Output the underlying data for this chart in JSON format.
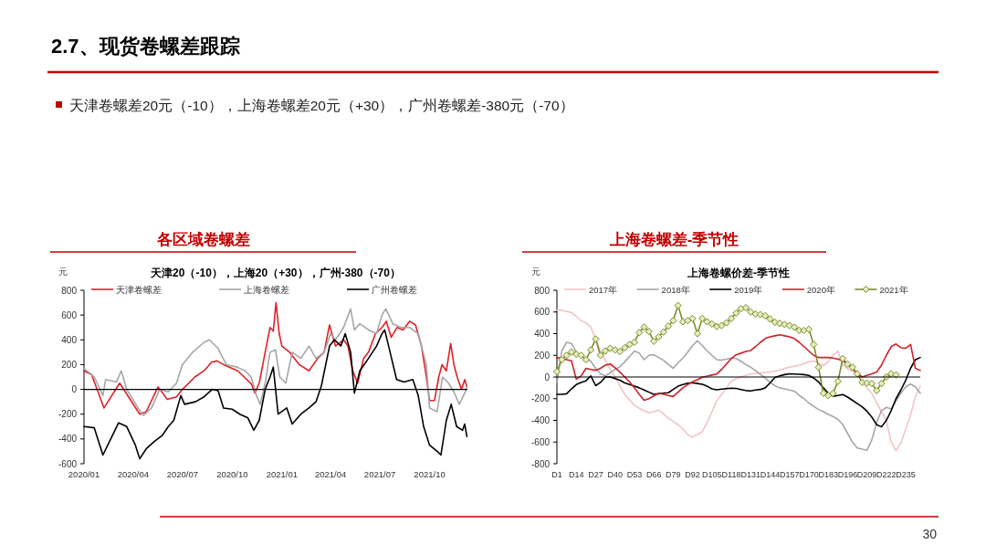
{
  "chart_data": [
    {
      "type": "line",
      "title": "各区域卷螺差",
      "subtitle": "天津20（-10），上海20（+30），广州-380（-70）",
      "ylabel": "元",
      "annotations": [
        "2.7、现货卷螺差跟踪",
        "天津卷螺差20元（-10），上海卷螺差20元（+30），广州卷螺差-380元（-70）",
        "30"
      ],
      "xlim": [
        "2020-01-01",
        "2021-12-10"
      ],
      "xticks": [
        {
          "value": "2020-01-01",
          "label": "2020/01"
        },
        {
          "value": "2020-04-01",
          "label": "2020/04"
        },
        {
          "value": "2020-07-01",
          "label": "2020/07"
        },
        {
          "value": "2020-10-01",
          "label": "2020/10"
        },
        {
          "value": "2021-01-01",
          "label": "2021/01"
        },
        {
          "value": "2021-04-01",
          "label": "2021/04"
        },
        {
          "value": "2021-07-01",
          "label": "2021/07"
        },
        {
          "value": "2021-10-01",
          "label": "2021/10"
        }
      ],
      "ylim": [
        -600,
        800
      ],
      "yticks": [
        -600,
        -400,
        -200,
        0,
        200,
        400,
        600,
        800
      ],
      "ref_lines": [
        {
          "axis": "y",
          "value": 0,
          "color": "#000000"
        }
      ],
      "legend": "top",
      "grid": false,
      "series": [
        {
          "name": "天津卷螺差",
          "color": "#e0202a",
          "x": [
            "2020-01-01",
            "2020-01-15",
            "2020-02-07",
            "2020-03-07",
            "2020-04-13",
            "2020-04-25",
            "2020-05-17",
            "2020-06-03",
            "2020-06-20",
            "2020-07-01",
            "2020-07-24",
            "2020-08-10",
            "2020-08-24",
            "2020-09-03",
            "2020-09-15",
            "2020-10-11",
            "2020-10-28",
            "2020-11-06",
            "2020-11-12",
            "2020-11-20",
            "2020-12-01",
            "2020-12-10",
            "2020-12-16",
            "2020-12-21",
            "2020-12-27",
            "2021-01-01",
            "2021-01-15",
            "2021-02-02",
            "2021-02-20",
            "2021-03-08",
            "2021-03-20",
            "2021-03-30",
            "2021-04-10",
            "2021-04-25",
            "2021-05-03",
            "2021-05-12",
            "2021-05-21",
            "2021-06-01",
            "2021-06-10",
            "2021-06-23",
            "2021-07-05",
            "2021-07-13",
            "2021-07-22",
            "2021-08-02",
            "2021-08-13",
            "2021-08-25",
            "2021-09-05",
            "2021-09-16",
            "2021-09-25",
            "2021-10-01",
            "2021-10-10",
            "2021-10-18",
            "2021-10-24",
            "2021-11-01",
            "2021-11-09",
            "2021-11-15",
            "2021-11-21",
            "2021-11-29",
            "2021-12-05",
            "2021-12-09"
          ],
          "values": [
            150,
            120,
            -150,
            50,
            -200,
            -180,
            20,
            -80,
            -60,
            0,
            100,
            150,
            220,
            230,
            200,
            150,
            80,
            40,
            -30,
            50,
            300,
            500,
            470,
            700,
            450,
            350,
            300,
            200,
            150,
            250,
            300,
            520,
            350,
            400,
            350,
            150,
            50,
            250,
            300,
            450,
            500,
            550,
            420,
            500,
            480,
            550,
            520,
            350,
            100,
            -90,
            -90,
            100,
            200,
            150,
            370,
            200,
            100,
            0,
            80,
            20
          ]
        },
        {
          "name": "上海卷螺差",
          "color": "#a6a6a6",
          "x": [
            "2020-01-01",
            "2020-01-20",
            "2020-02-05",
            "2020-02-10",
            "2020-03-01",
            "2020-03-10",
            "2020-03-20",
            "2020-04-10",
            "2020-04-20",
            "2020-05-05",
            "2020-05-20",
            "2020-06-05",
            "2020-06-20",
            "2020-07-01",
            "2020-07-20",
            "2020-08-10",
            "2020-08-20",
            "2020-09-05",
            "2020-09-20",
            "2020-10-10",
            "2020-10-25",
            "2020-11-05",
            "2020-11-15",
            "2020-11-22",
            "2020-12-01",
            "2020-12-10",
            "2020-12-20",
            "2020-12-28",
            "2021-01-08",
            "2021-01-20",
            "2021-02-05",
            "2021-02-20",
            "2021-03-05",
            "2021-03-20",
            "2021-04-01",
            "2021-04-10",
            "2021-04-25",
            "2021-05-08",
            "2021-05-15",
            "2021-05-25",
            "2021-06-10",
            "2021-06-25",
            "2021-07-05",
            "2021-07-12",
            "2021-07-25",
            "2021-08-10",
            "2021-08-25",
            "2021-09-10",
            "2021-09-25",
            "2021-10-01",
            "2021-10-15",
            "2021-10-25",
            "2021-11-05",
            "2021-11-15",
            "2021-11-25",
            "2021-12-05",
            "2021-12-09"
          ],
          "values": [
            170,
            100,
            -50,
            80,
            60,
            150,
            0,
            -150,
            -210,
            -150,
            0,
            -20,
            50,
            200,
            300,
            380,
            400,
            330,
            200,
            180,
            150,
            100,
            -50,
            -120,
            50,
            300,
            320,
            100,
            50,
            300,
            250,
            350,
            250,
            300,
            450,
            400,
            500,
            650,
            480,
            530,
            480,
            450,
            600,
            650,
            530,
            500,
            500,
            450,
            200,
            -150,
            -180,
            100,
            50,
            -20,
            -120,
            -30,
            20
          ]
        },
        {
          "name": "广州卷螺差",
          "color": "#000000",
          "x": [
            "2020-01-01",
            "2020-01-20",
            "2020-02-05",
            "2020-02-25",
            "2020-03-05",
            "2020-03-20",
            "2020-04-05",
            "2020-04-13",
            "2020-04-25",
            "2020-05-10",
            "2020-05-25",
            "2020-06-05",
            "2020-06-15",
            "2020-06-28",
            "2020-07-05",
            "2020-07-25",
            "2020-08-10",
            "2020-08-25",
            "2020-09-05",
            "2020-09-15",
            "2020-10-01",
            "2020-10-15",
            "2020-10-30",
            "2020-11-10",
            "2020-11-20",
            "2020-12-01",
            "2020-12-10",
            "2020-12-16",
            "2020-12-25",
            "2021-01-10",
            "2021-01-20",
            "2021-02-05",
            "2021-02-20",
            "2021-03-05",
            "2021-03-15",
            "2021-03-30",
            "2021-04-08",
            "2021-04-20",
            "2021-04-28",
            "2021-05-08",
            "2021-05-15",
            "2021-05-25",
            "2021-06-10",
            "2021-06-25",
            "2021-07-05",
            "2021-07-10",
            "2021-07-20",
            "2021-08-01",
            "2021-08-15",
            "2021-08-31",
            "2021-09-10",
            "2021-09-20",
            "2021-10-01",
            "2021-10-15",
            "2021-10-22",
            "2021-11-01",
            "2021-11-10",
            "2021-11-20",
            "2021-12-01",
            "2021-12-05",
            "2021-12-09"
          ],
          "values": [
            -300,
            -310,
            -530,
            -350,
            -270,
            -300,
            -450,
            -560,
            -480,
            -420,
            -370,
            -300,
            -250,
            -50,
            -120,
            -100,
            -60,
            0,
            -10,
            -150,
            -160,
            -200,
            -230,
            -330,
            -250,
            0,
            100,
            180,
            -200,
            -150,
            -280,
            -200,
            -150,
            -100,
            30,
            350,
            400,
            350,
            450,
            300,
            -30,
            150,
            250,
            350,
            450,
            480,
            300,
            80,
            60,
            80,
            -50,
            -300,
            -450,
            -500,
            -530,
            -250,
            -120,
            -300,
            -330,
            -280,
            -380
          ]
        }
      ]
    },
    {
      "type": "line",
      "title": "上海卷螺差-季节性",
      "subtitle": "上海卷螺价差-季节性",
      "ylabel": "元",
      "categories": [
        "D1",
        null,
        null,
        null,
        "D14",
        null,
        null,
        null,
        "D27",
        null,
        null,
        null,
        "D40",
        null,
        null,
        null,
        "D53",
        null,
        null,
        null,
        "D66",
        null,
        null,
        null,
        "D79",
        null,
        null,
        null,
        "D92",
        null,
        null,
        null,
        "D105",
        null,
        null,
        null,
        "D118",
        null,
        null,
        null,
        "D131",
        null,
        null,
        null,
        "D144",
        null,
        null,
        null,
        "D157",
        null,
        null,
        null,
        "D170",
        null,
        null,
        null,
        "D183",
        null,
        null,
        null,
        "D196",
        null,
        null,
        null,
        "D209",
        null,
        null,
        null,
        "D222",
        null,
        null,
        null,
        "D235",
        null,
        null,
        null
      ],
      "ylim": [
        -800,
        800
      ],
      "yticks": [
        -800,
        -600,
        -400,
        -200,
        0,
        200,
        400,
        600,
        800
      ],
      "ref_lines": [
        {
          "axis": "y",
          "value": 0,
          "color": "#000000"
        }
      ],
      "legend": "top",
      "grid": false,
      "series": [
        {
          "name": "2017年",
          "color": "#f2c4c4",
          "values": [
            620,
            615,
            605,
            595,
            560,
            520,
            500,
            460,
            350,
            240,
            150,
            70,
            0,
            -80,
            -160,
            -210,
            -260,
            -290,
            -310,
            -330,
            -320,
            -305,
            -340,
            -380,
            -410,
            -440,
            -480,
            -530,
            -555,
            -530,
            -505,
            -420,
            -320,
            -220,
            -160,
            -100,
            -40,
            -15,
            0,
            15,
            28,
            33,
            38,
            42,
            47,
            55,
            65,
            80,
            90,
            100,
            110,
            125,
            140,
            150,
            130,
            105,
            140,
            200,
            240,
            110,
            75,
            55,
            30,
            -40,
            -100,
            -150,
            -240,
            -320,
            -400,
            -600,
            -680,
            -610,
            -480,
            -350,
            -180,
            -80
          ]
        },
        {
          "name": "2018年",
          "color": "#a6a6a6",
          "values": [
            -50,
            240,
            320,
            310,
            230,
            190,
            170,
            145,
            80,
            30,
            10,
            40,
            70,
            95,
            140,
            190,
            240,
            220,
            160,
            200,
            205,
            180,
            155,
            115,
            80,
            130,
            175,
            230,
            290,
            335,
            290,
            240,
            200,
            160,
            155,
            165,
            175,
            170,
            145,
            115,
            90,
            60,
            25,
            -10,
            -50,
            -80,
            -100,
            -110,
            -120,
            -130,
            -170,
            -200,
            -240,
            -270,
            -300,
            -320,
            -345,
            -365,
            -390,
            -440,
            -520,
            -600,
            -655,
            -665,
            -675,
            -580,
            -420,
            -310,
            -280,
            -295,
            -220,
            -150,
            -90,
            -65,
            -90,
            -150
          ]
        },
        {
          "name": "2019年",
          "color": "#000000",
          "values": [
            -160,
            -160,
            -155,
            -110,
            -70,
            -50,
            -35,
            10,
            -80,
            -50,
            0,
            0,
            -15,
            -30,
            -55,
            -70,
            -85,
            -100,
            -120,
            -140,
            -160,
            -155,
            -150,
            -145,
            -115,
            -85,
            -70,
            -58,
            -52,
            -60,
            -68,
            -85,
            -110,
            -118,
            -112,
            -108,
            -103,
            -105,
            -115,
            -125,
            -128,
            -120,
            -115,
            -100,
            -55,
            -5,
            10,
            22,
            30,
            28,
            25,
            22,
            15,
            -10,
            -45,
            -100,
            -150,
            -178,
            -170,
            -162,
            -185,
            -215,
            -245,
            -275,
            -315,
            -370,
            -440,
            -460,
            -400,
            -310,
            -200,
            -120,
            -30,
            80,
            160,
            180
          ]
        },
        {
          "name": "2020年",
          "color": "#d0202a",
          "values": [
            180,
            170,
            160,
            150,
            -20,
            10,
            80,
            70,
            62,
            80,
            110,
            120,
            85,
            45,
            0,
            -45,
            -100,
            -160,
            -215,
            -200,
            -175,
            -150,
            -160,
            -170,
            -180,
            -140,
            -100,
            -70,
            -45,
            -25,
            -2,
            8,
            18,
            28,
            70,
            120,
            170,
            205,
            220,
            235,
            245,
            280,
            320,
            355,
            370,
            380,
            390,
            380,
            370,
            355,
            320,
            280,
            240,
            200,
            180,
            180,
            180,
            175,
            165,
            152,
            115,
            75,
            35,
            0,
            15,
            30,
            45,
            110,
            200,
            280,
            305,
            270,
            265,
            300,
            80,
            60
          ]
        },
        {
          "name": "2021年",
          "color": "#7a8c2a",
          "marker": "diamond",
          "values": [
            50,
            160,
            200,
            230,
            210,
            200,
            160,
            250,
            350,
            200,
            240,
            265,
            250,
            235,
            270,
            300,
            320,
            410,
            460,
            420,
            330,
            370,
            415,
            470,
            520,
            660,
            510,
            520,
            540,
            400,
            540,
            510,
            490,
            465,
            475,
            500,
            540,
            590,
            630,
            640,
            600,
            580,
            575,
            565,
            535,
            505,
            495,
            485,
            475,
            460,
            430,
            430,
            440,
            300,
            90,
            -150,
            -170,
            -150,
            -40,
            170,
            120,
            90,
            30,
            -50,
            -55,
            -60,
            -125,
            -60,
            0,
            30,
            20,
            null,
            null,
            null,
            null,
            null
          ]
        }
      ]
    }
  ]
}
